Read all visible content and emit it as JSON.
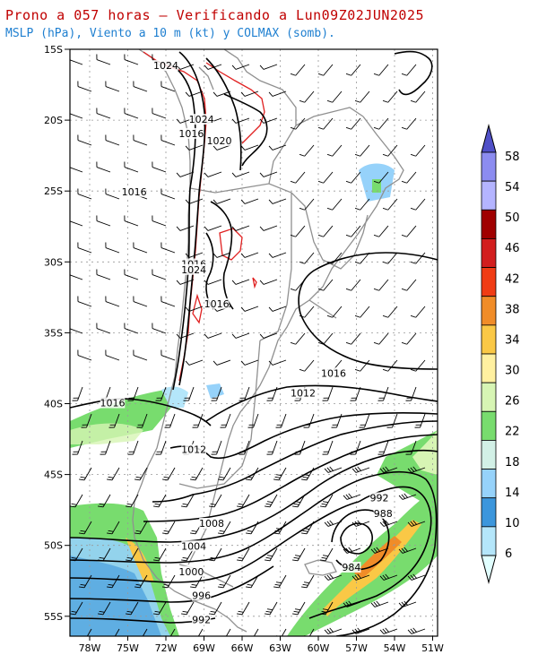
{
  "header": {
    "title": "Prono a 057 horas — Verificando a Lun09Z02JUN2025",
    "subtitle": "MSLP (hPa), Viento a 10 m (kt) y COLMAX (somb)."
  },
  "axes": {
    "lat_labels": [
      "15S",
      "20S",
      "25S",
      "30S",
      "35S",
      "40S",
      "45S",
      "50S",
      "55S"
    ],
    "lon_labels": [
      "78W",
      "75W",
      "72W",
      "69W",
      "66W",
      "63W",
      "60W",
      "57W",
      "54W",
      "51W"
    ]
  },
  "isobar_labels": [
    {
      "text": "1024",
      "lat": -16.2,
      "lon": -72.0
    },
    {
      "text": "1024",
      "lat": -20.0,
      "lon": -69.2
    },
    {
      "text": "1016",
      "lat": -21.0,
      "lon": -70.0
    },
    {
      "text": "1020",
      "lat": -21.5,
      "lon": -67.8
    },
    {
      "text": "1016",
      "lat": -25.1,
      "lon": -74.5
    },
    {
      "text": "1016",
      "lat": -30.2,
      "lon": -69.8
    },
    {
      "text": "1024",
      "lat": -30.6,
      "lon": -69.8
    },
    {
      "text": "1016",
      "lat": -33.0,
      "lon": -68.0
    },
    {
      "text": "1016",
      "lat": -37.9,
      "lon": -58.8
    },
    {
      "text": "1012",
      "lat": -39.3,
      "lon": -61.2
    },
    {
      "text": "1016",
      "lat": -40.0,
      "lon": -76.2
    },
    {
      "text": "1012",
      "lat": -43.3,
      "lon": -69.8
    },
    {
      "text": "1008",
      "lat": -48.5,
      "lon": -68.4
    },
    {
      "text": "1004",
      "lat": -50.1,
      "lon": -69.8
    },
    {
      "text": "1000",
      "lat": -51.9,
      "lon": -70.0
    },
    {
      "text": "996",
      "lat": -53.6,
      "lon": -69.2
    },
    {
      "text": "992",
      "lat": -55.3,
      "lon": -69.2
    },
    {
      "text": "992",
      "lat": -46.7,
      "lon": -55.2
    },
    {
      "text": "988",
      "lat": -47.8,
      "lon": -54.9
    },
    {
      "text": "984",
      "lat": -51.6,
      "lon": -57.4
    }
  ],
  "colorbar": {
    "labels": [
      "58",
      "54",
      "50",
      "46",
      "42",
      "38",
      "34",
      "30",
      "26",
      "22",
      "18",
      "14",
      "10",
      "6"
    ],
    "colors": [
      "#5050c8",
      "#8c8cf0",
      "#b4b4ff",
      "#a00000",
      "#d21e1e",
      "#f03c14",
      "#f08c28",
      "#fac846",
      "#fff0a0",
      "#d7f5b4",
      "#78dc6e",
      "#d2f0e6",
      "#96d2fa",
      "#3c96dc",
      "#b4e6fa",
      "#e1ffff"
    ]
  }
}
